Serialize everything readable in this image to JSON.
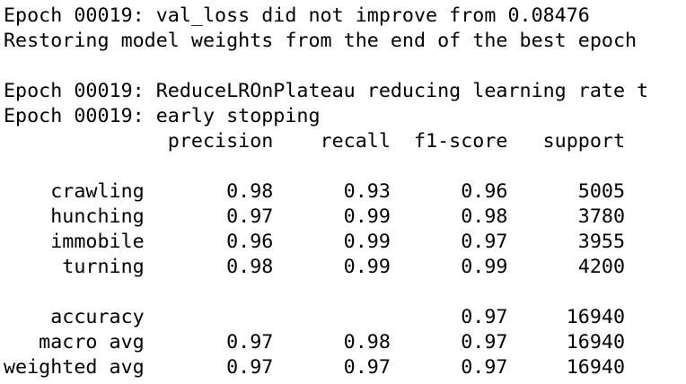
{
  "console": {
    "lines": [
      "Epoch 00019: val_loss did not improve from 0.08476",
      "Restoring model weights from the end of the best epoch",
      "",
      "Epoch 00019: ReduceLROnPlateau reducing learning rate t",
      "Epoch 00019: early stopping",
      "              precision    recall  f1-score   support",
      "",
      "    crawling       0.98      0.93      0.96      5005",
      "    hunching       0.97      0.99      0.98      3780",
      "    immobile       0.96      0.99      0.97      3955",
      "     turning       0.98      0.99      0.99      4200",
      "",
      "    accuracy                           0.97     16940",
      "   macro avg       0.97      0.98      0.97     16940",
      "weighted avg       0.97      0.97      0.97     16940"
    ]
  }
}
